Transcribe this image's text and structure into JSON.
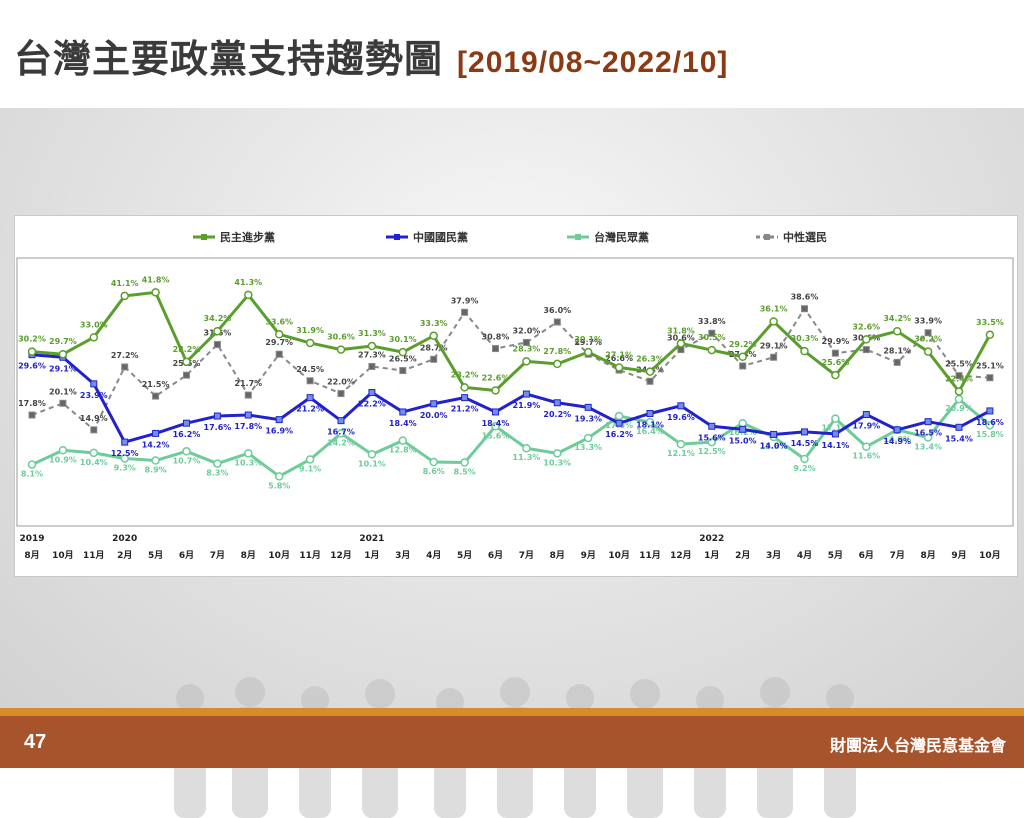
{
  "slide": {
    "title": "台灣主要政黨支持趨勢圖",
    "date_range": "[2019/08~2022/10]",
    "page_number": "47",
    "organization": "財團法人台灣民意基金會"
  },
  "colors": {
    "dpp": "#5a9e2c",
    "kmt": "#2222cc",
    "tpp": "#6dcc9a",
    "neutral": "#888888",
    "title_range": "#8b3a14",
    "footer": "#a7532b",
    "footer_accent": "#d98a2b"
  },
  "chart_data": {
    "type": "line",
    "title": "",
    "xlabel": "",
    "ylabel": "",
    "ylim": [
      0,
      45
    ],
    "grid": false,
    "legend_position": "top",
    "categories": [
      "8月",
      "10月",
      "11月",
      "2月",
      "5月",
      "6月",
      "7月",
      "8月",
      "10月",
      "11月",
      "12月",
      "1月",
      "3月",
      "4月",
      "5月",
      "6月",
      "7月",
      "8月",
      "9月",
      "10月",
      "11月",
      "12月",
      "1月",
      "2月",
      "3月",
      "4月",
      "5月",
      "6月",
      "7月",
      "8月",
      "9月",
      "10月"
    ],
    "year_labels": [
      {
        "label": "2019",
        "index": 0
      },
      {
        "label": "2020",
        "index": 3
      },
      {
        "label": "2021",
        "index": 11
      },
      {
        "label": "2022",
        "index": 22
      }
    ],
    "series": [
      {
        "name": "民主進步黨",
        "color": "#5a9e2c",
        "dash": false,
        "values": [
          30.2,
          29.7,
          33.0,
          41.1,
          41.8,
          28.2,
          34.2,
          41.3,
          33.6,
          31.9,
          30.6,
          31.3,
          30.1,
          33.3,
          23.2,
          22.6,
          28.3,
          27.8,
          30.1,
          27.1,
          26.3,
          31.8,
          30.5,
          29.2,
          36.1,
          30.3,
          25.6,
          32.6,
          34.2,
          30.2,
          22.4,
          33.5
        ]
      },
      {
        "name": "中國國民黨",
        "color": "#2222cc",
        "dash": false,
        "values": [
          29.6,
          29.1,
          23.9,
          12.5,
          14.2,
          16.2,
          17.6,
          17.8,
          16.9,
          21.2,
          16.7,
          22.2,
          18.4,
          20.0,
          21.2,
          18.4,
          21.9,
          20.2,
          19.3,
          16.2,
          18.1,
          19.6,
          15.6,
          15.0,
          14.0,
          14.5,
          14.1,
          17.9,
          14.9,
          16.5,
          15.4,
          18.6
        ]
      },
      {
        "name": "台灣民眾黨",
        "color": "#6dcc9a",
        "dash": false,
        "values": [
          8.1,
          10.9,
          10.4,
          9.3,
          8.9,
          10.7,
          8.3,
          10.3,
          5.8,
          9.1,
          14.2,
          10.1,
          12.8,
          8.6,
          8.5,
          15.6,
          11.3,
          10.3,
          13.3,
          17.6,
          16.4,
          12.1,
          12.5,
          16.2,
          13.5,
          9.2,
          17.1,
          11.6,
          14.9,
          13.4,
          20.9,
          15.8
        ]
      },
      {
        "name": "中性選民",
        "color": "#888888",
        "dash": true,
        "values": [
          17.8,
          20.1,
          14.9,
          27.2,
          21.5,
          25.6,
          31.6,
          21.7,
          29.7,
          24.5,
          22.0,
          27.3,
          26.5,
          28.7,
          37.9,
          30.8,
          32.0,
          36.0,
          29.7,
          26.6,
          24.4,
          30.6,
          33.8,
          27.4,
          29.1,
          38.6,
          29.9,
          30.6,
          28.1,
          33.9,
          25.5,
          25.1
        ]
      }
    ]
  }
}
